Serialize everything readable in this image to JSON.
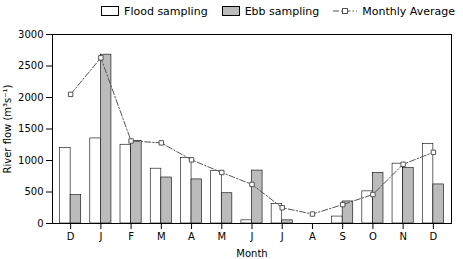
{
  "chart_data": {
    "type": "bar",
    "categories": [
      "D",
      "J",
      "F",
      "M",
      "A",
      "M",
      "J",
      "J",
      "A",
      "S",
      "O",
      "N",
      "D"
    ],
    "series": [
      {
        "name": "Flood sampling",
        "color": "white",
        "values": [
          1200,
          1350,
          1250,
          870,
          1040,
          830,
          50,
          310,
          0,
          110,
          510,
          950,
          1260
        ]
      },
      {
        "name": "Ebb sampling",
        "color": "#bbbbbb",
        "values": [
          450,
          2680,
          1310,
          730,
          700,
          480,
          840,
          50,
          0,
          350,
          800,
          880,
          620
        ]
      },
      {
        "name": "Monthly Average",
        "type": "line",
        "color": "#555555",
        "marker": "square",
        "line_style": "dashdot",
        "values": [
          2050,
          2630,
          1310,
          1280,
          1010,
          810,
          620,
          250,
          150,
          300,
          460,
          940,
          1130
        ]
      }
    ],
    "xlabel": "Month",
    "ylabel": "River flow (m³s⁻¹)",
    "ylim": [
      0,
      3000
    ],
    "yticks": [
      0,
      500,
      1000,
      1500,
      2000,
      2500,
      3000
    ],
    "legend": "upper right",
    "grid": false
  }
}
